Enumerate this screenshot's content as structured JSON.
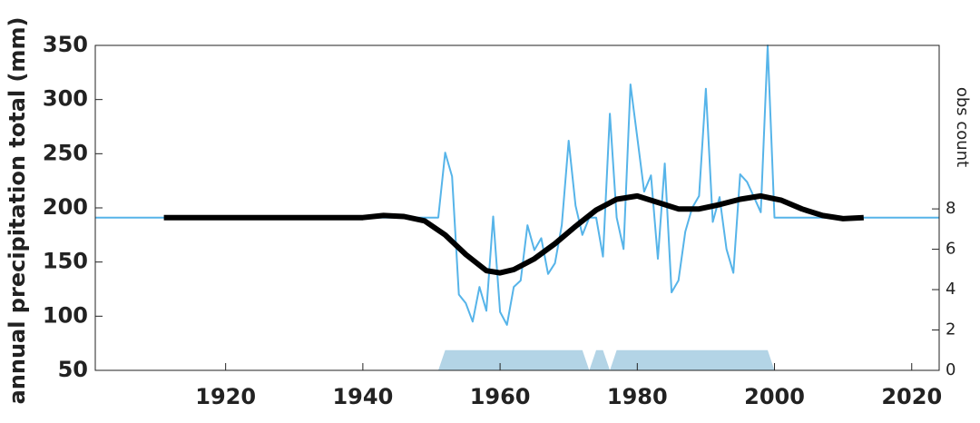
{
  "chart_data": {
    "type": "line",
    "ylabel": "annual precipitation total (mm)",
    "y2label": "obs count",
    "xlim": [
      1901,
      2024
    ],
    "xticks": [
      1920,
      1940,
      1960,
      1980,
      2000,
      2020
    ],
    "ylim": [
      50,
      350
    ],
    "yticks": [
      50,
      100,
      150,
      200,
      250,
      300,
      350
    ],
    "y2lim": [
      0,
      16.1
    ],
    "y2ticks": [
      0,
      2,
      4,
      6,
      8
    ],
    "series": [
      {
        "type": "area",
        "axis": "y2",
        "color": "#b3d4e6",
        "x": [
          1951,
          1952,
          1972,
          1973,
          1974,
          1975,
          1976,
          1977,
          1999,
          2000
        ],
        "values": [
          0,
          1,
          1,
          0,
          1,
          1,
          0,
          1,
          1,
          0
        ]
      },
      {
        "type": "line",
        "color": "#56b4e9",
        "linewidth": 2,
        "x": [
          1901,
          1951,
          1952,
          1953,
          1954,
          1955,
          1956,
          1957,
          1958,
          1959,
          1960,
          1961,
          1962,
          1963,
          1964,
          1965,
          1966,
          1967,
          1968,
          1969,
          1970,
          1971,
          1972,
          1973,
          1974,
          1975,
          1976,
          1977,
          1978,
          1979,
          1980,
          1981,
          1982,
          1983,
          1984,
          1985,
          1986,
          1987,
          1988,
          1989,
          1990,
          1991,
          1992,
          1993,
          1994,
          1995,
          1996,
          1997,
          1998,
          1999,
          2000,
          2024
        ],
        "values": [
          191,
          191,
          251,
          229,
          120,
          112,
          95,
          127,
          105,
          192,
          104,
          92,
          127,
          133,
          184,
          161,
          172,
          139,
          149,
          184,
          262,
          202,
          175,
          191,
          191,
          155,
          287,
          191,
          162,
          314,
          265,
          215,
          230,
          153,
          241,
          122,
          133,
          178,
          200,
          211,
          310,
          187,
          210,
          162,
          140,
          231,
          224,
          210,
          196,
          350,
          191,
          191
        ]
      },
      {
        "type": "line",
        "color": "#000000",
        "linewidth": 6,
        "x": [
          1911,
          1940,
          1943,
          1946,
          1949,
          1952,
          1955,
          1958,
          1960,
          1962,
          1965,
          1968,
          1971,
          1974,
          1977,
          1980,
          1983,
          1986,
          1989,
          1992,
          1995,
          1998,
          2001,
          2004,
          2007,
          2010,
          2013
        ],
        "values": [
          191,
          191,
          193,
          192,
          188,
          175,
          157,
          142,
          140,
          143,
          153,
          167,
          183,
          198,
          208,
          211,
          205,
          199,
          199,
          203,
          208,
          211,
          207,
          199,
          193,
          190,
          191
        ]
      }
    ]
  }
}
